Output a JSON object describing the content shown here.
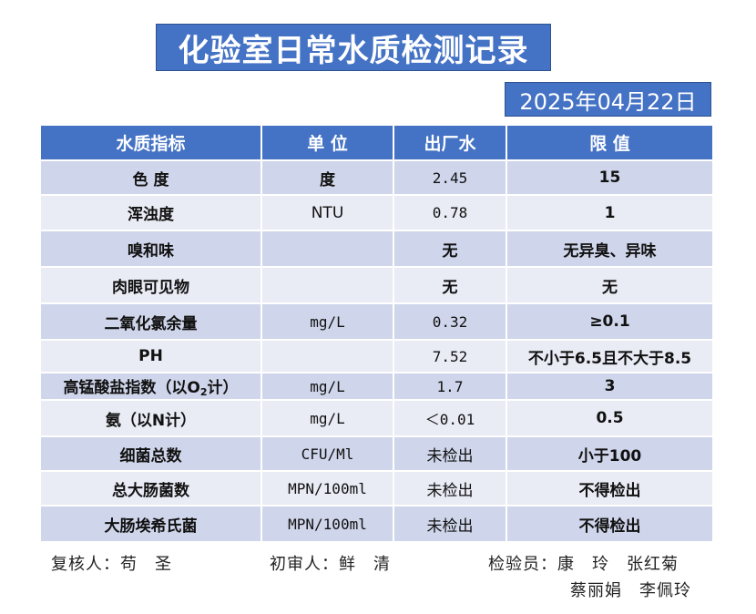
{
  "title": "化验室日常水质检测记录",
  "date": "2025年04月22日",
  "columns": [
    "水质指标",
    "单 位",
    "出厂水",
    "限 值"
  ],
  "rows": [
    {
      "indicator": "色 度",
      "unit": "度",
      "value": "2.45",
      "limit": "15"
    },
    {
      "indicator": "浑浊度",
      "unit": "NTU",
      "value": "0.78",
      "limit": "1"
    },
    {
      "indicator": "嗅和味",
      "unit": "",
      "value": "无",
      "limit": "无异臭、异味"
    },
    {
      "indicator": "肉眼可见物",
      "unit": "",
      "value": "无",
      "limit": "无"
    },
    {
      "indicator": "二氧化氯余量",
      "unit": "mg/L",
      "value": "0.32",
      "limit": "≥0.1"
    },
    {
      "indicator": "PH",
      "unit": "",
      "value": "7.52",
      "limit": "不小于6.5且不大于8.5"
    },
    {
      "indicator_pre": "高锰酸盐指数（以O",
      "indicator_sub": "2",
      "indicator_post": "计）",
      "unit": "mg/L",
      "value": "1.7",
      "limit": "3"
    },
    {
      "indicator": "氨（以N计）",
      "unit": "mg/L",
      "value": "＜0.01",
      "limit": "0.5"
    },
    {
      "indicator": "细菌总数",
      "unit": "CFU/Ml",
      "value": "未检出",
      "limit": "小于100"
    },
    {
      "indicator": "总大肠菌数",
      "unit": "MPN/100ml",
      "value": "未检出",
      "limit": "不得检出"
    },
    {
      "indicator": "大肠埃希氏菌",
      "unit": "MPN/100ml",
      "value": "未检出",
      "limit": "不得检出"
    }
  ],
  "footer": {
    "reviewer": "复核人：苟　圣",
    "first_review": "初审人：鲜　清",
    "inspector_line1": "检验员：康　玲　张红菊",
    "inspector_line2": "蔡丽娟　李佩玲"
  }
}
